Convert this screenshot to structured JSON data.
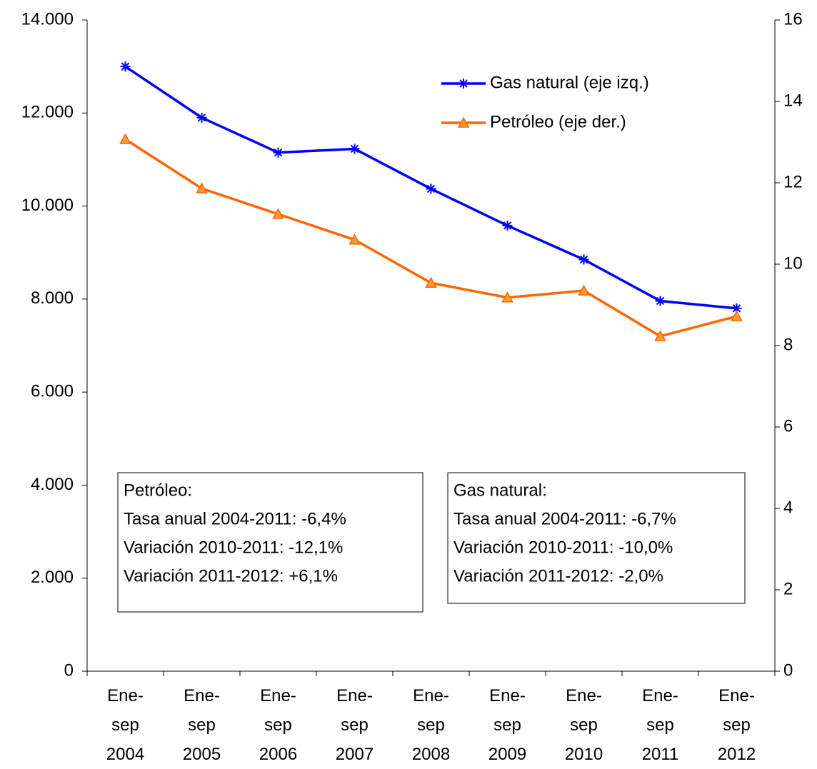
{
  "chart_data": {
    "type": "line",
    "categories": [
      "Ene-\nsep\n2004",
      "Ene-\nsep\n2005",
      "Ene-\nsep\n2006",
      "Ene-\nsep\n2007",
      "Ene-\nsep\n2008",
      "Ene-\nsep\n2009",
      "Ene-\nsep\n2010",
      "Ene-\nsep\n2011",
      "Ene-\nsep\n2012"
    ],
    "series": [
      {
        "name": "Gas natural (eje izq.)",
        "color": "#0000ff",
        "marker": "star",
        "values": [
          13000,
          11900,
          11150,
          11230,
          10370,
          9580,
          8850,
          7960,
          7800
        ]
      },
      {
        "name": "Petróleo (eje der.)",
        "color": "#ff6600",
        "marker": "triangle",
        "axis": "y2",
        "values": [
          13.07,
          11.86,
          11.23,
          10.6,
          9.54,
          9.18,
          9.35,
          8.23,
          8.72
        ]
      }
    ],
    "ylim": [
      0,
      14000
    ],
    "yticks": [
      0,
      {
        "value": 2000,
        "label": "2.000"
      },
      {
        "value": 4000,
        "label": "4.000"
      },
      {
        "value": 6000,
        "label": "6.000"
      },
      {
        "value": 8000,
        "label": "8.000"
      },
      {
        "value": 10000,
        "label": "10.000"
      },
      {
        "value": 12000,
        "label": "12.000"
      },
      {
        "value": 14000,
        "label": "14.000"
      }
    ],
    "y2lim": [
      0,
      16
    ],
    "y2ticks": [
      0,
      2,
      4,
      6,
      8,
      10,
      12,
      14,
      16
    ],
    "grid": false,
    "legend": "top-right",
    "annotations": [
      {
        "lines": [
          "Petróleo:",
          "Tasa anual 2004-2011: -6,4%",
          "Variación 2010-2011: -12,1%",
          "Variación 2011-2012: +6,1%"
        ]
      },
      {
        "lines": [
          "Gas natural:",
          "Tasa anual 2004-2011: -6,7%",
          "Variación 2010-2011: -10,0%",
          "Variación 2011-2012: -2,0%"
        ]
      }
    ]
  }
}
